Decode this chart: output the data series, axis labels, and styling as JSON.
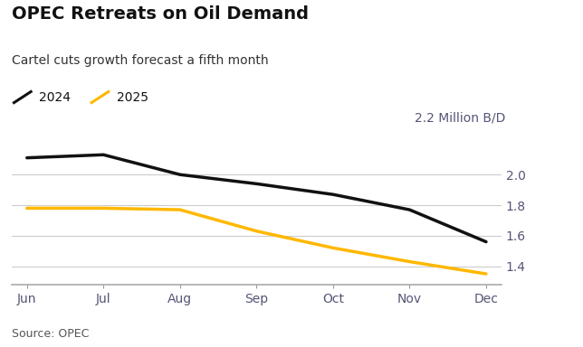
{
  "title": "OPEC Retreats on Oil Demand",
  "subtitle": "Cartel cuts growth forecast a fifth month",
  "source": "Source: OPEC",
  "ylabel_text": "2.2 Million B/D",
  "x_labels": [
    "Jun",
    "Jul",
    "Aug",
    "Sep",
    "Oct",
    "Nov",
    "Dec"
  ],
  "x_values": [
    0,
    1,
    2,
    3,
    4,
    5,
    6
  ],
  "series_2024": {
    "label": "2024",
    "color": "#111111",
    "values": [
      2.11,
      2.13,
      2.0,
      1.94,
      1.87,
      1.77,
      1.56
    ]
  },
  "series_2025": {
    "label": "2025",
    "color": "#FFB800",
    "values": [
      1.78,
      1.78,
      1.77,
      1.63,
      1.52,
      1.43,
      1.35
    ]
  },
  "ylim": [
    1.28,
    2.28
  ],
  "yticks": [
    1.4,
    1.6,
    1.8,
    2.0
  ],
  "background_color": "#ffffff",
  "grid_color": "#cccccc",
  "line_width": 2.5,
  "title_fontsize": 14,
  "subtitle_fontsize": 10,
  "legend_fontsize": 10,
  "tick_fontsize": 10,
  "source_fontsize": 9,
  "axis_label_color": "#555577"
}
